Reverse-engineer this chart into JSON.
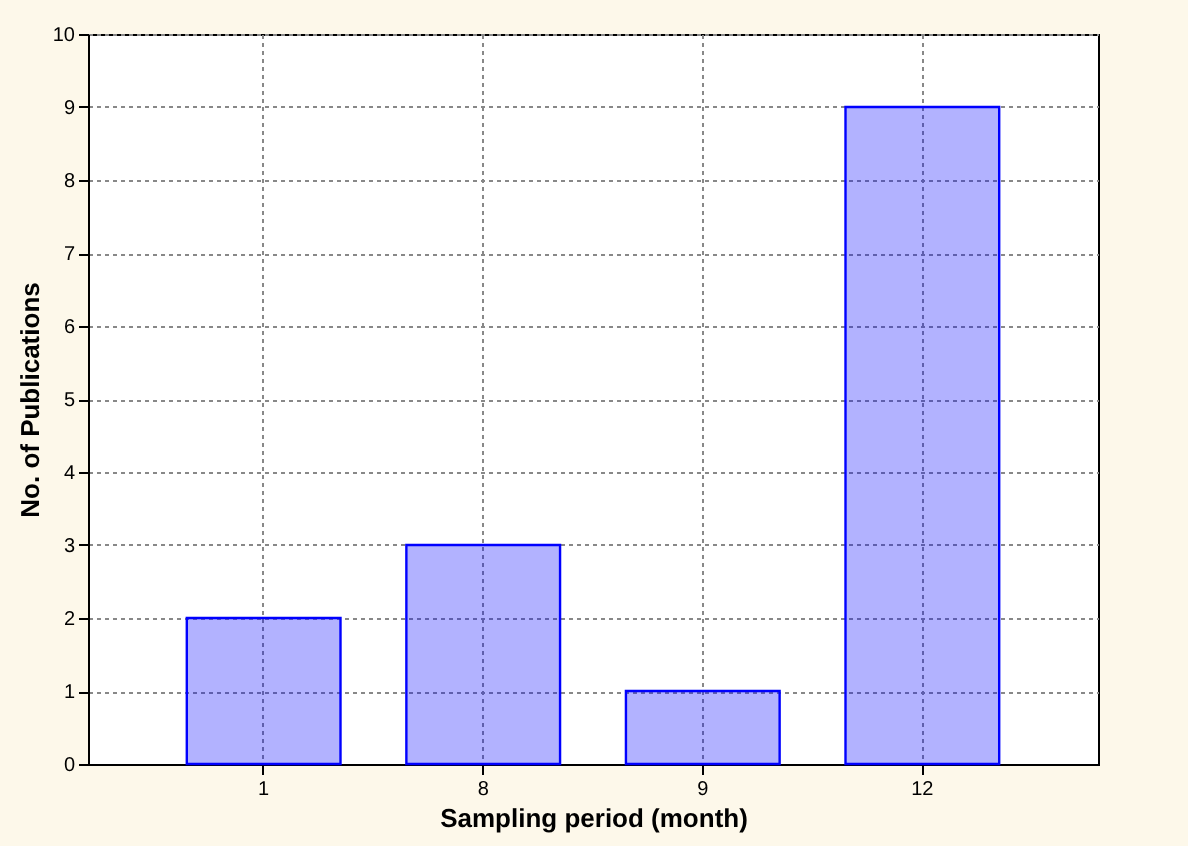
{
  "chart_data": {
    "type": "bar",
    "xlabel": "Sampling period (month)",
    "ylabel": "No. of Publications",
    "categories": [
      "1",
      "8",
      "9",
      "12"
    ],
    "values": [
      2,
      3,
      1,
      9
    ],
    "color": "#0000ff",
    "ylim": [
      0,
      10
    ],
    "yticks": [
      0,
      1,
      2,
      3,
      4,
      5,
      6,
      7,
      8,
      9,
      10
    ],
    "grid": true
  }
}
